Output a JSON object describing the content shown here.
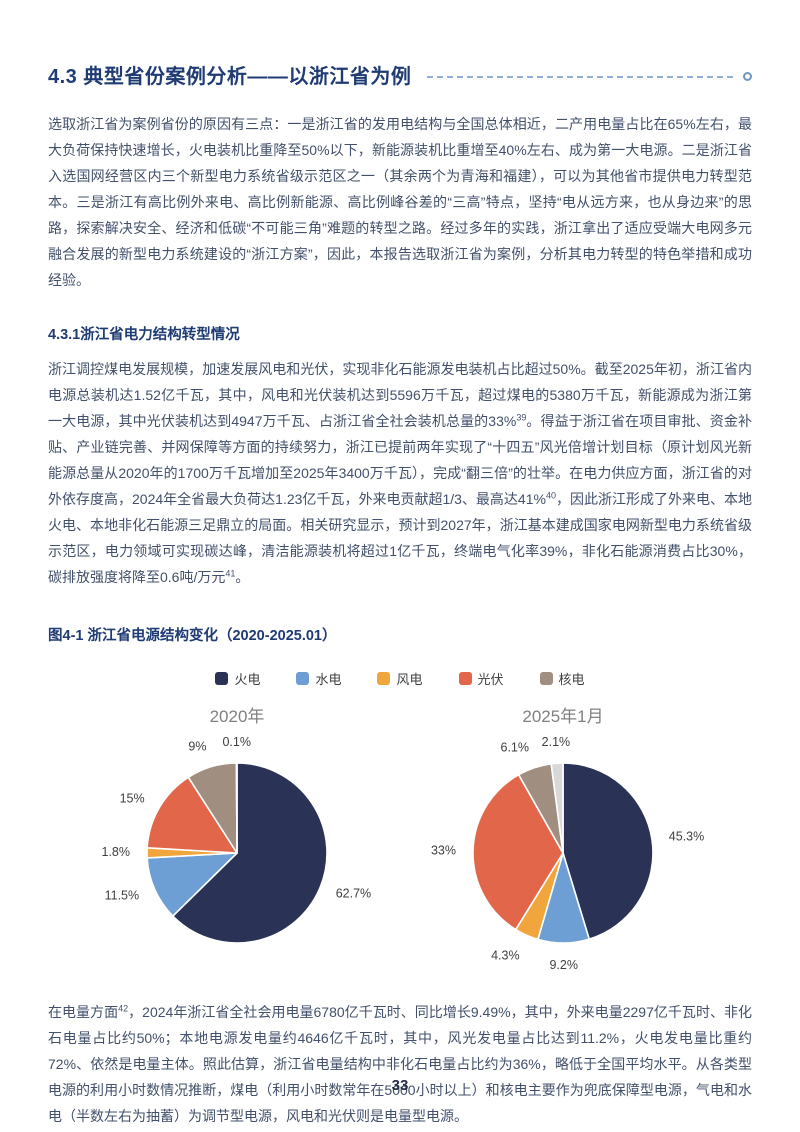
{
  "page": {
    "number": "33"
  },
  "section": {
    "title": "4.3 典型省份案例分析——以浙江省为例",
    "subsection_title": "4.3.1浙江省电力结构转型情况",
    "figure_caption": "图4-1 浙江省电源结构变化（2020-2025.01）"
  },
  "paragraphs": {
    "p1": [
      "选取浙江省为案例省份的原因有三点：一是浙江省的发用电结构与全国总体相近，二产用电量占比在65%左右，最大负荷保持快速增长，火电装机比重降至50%以下，新能源装机比重增至40%左右、成为第一大电源。二是浙江省入选国网经营区内三个新型电力系统省级示范区之一（其余两个为青海和福建），可以为其他省市提供电力转型范本。三是浙江有高比例外来电、高比例新能源、高比例峰谷差的“三高”特点，坚持“电从远方来，也从身边来”的思路，探索解决安全、经济和低碳“不可能三角”难题的转型之路。经过多年的实践，浙江拿出了适应受端大电网多元融合发展的新型电力系统建设的“浙江方案”，因此，本报告选取浙江省为案例，分析其电力转型的特色举措和成功经验。"
    ],
    "p2": [
      "浙江调控煤电发展规模，加速发展风电和光伏，实现非化石能源发电装机占比超过50%。截至2025年初，浙江省内电源总装机达1.52亿千瓦，其中，风电和光伏装机达到5596万千瓦，超过煤电的5380万千瓦，新能源成为浙江第一大电源，其中光伏装机达到4947万千瓦、占浙江省全社会装机总量的33%",
      {
        "sup": "39"
      },
      "。得益于浙江省在项目审批、资金补贴、产业链完善、并网保障等方面的持续努力，浙江已提前两年实现了“十四五”风光倍增计划目标（原计划风光新能源总量从2020年的1700万千瓦增加至2025年3400万千瓦），完成“翻三倍”的壮举。在电力供应方面，浙江省的对外依存度高，2024年全省最大负荷达1.23亿千瓦，外来电贡献超1/3、最高达41%",
      {
        "sup": "40"
      },
      "，因此浙江形成了外来电、本地火电、本地非化石能源三足鼎立的局面。相关研究显示，预计到2027年，浙江基本建成国家电网新型电力系统省级示范区，电力领域可实现碳达峰，清洁能源装机将超过1亿千瓦，终端电气化率39%，非化石能源消费占比30%，碳排放强度将降至0.6吨/万元",
      {
        "sup": "41"
      },
      "。"
    ],
    "p3": [
      "在电量方面",
      {
        "sup": "42"
      },
      "，2024年浙江省全社会用电量6780亿千瓦时、同比增长9.49%，其中，外来电量2297亿千瓦时、非化石电量占比约50%；本地电源发电量约4646亿千瓦时，其中，风光发电量占比达到11.2%，火电发电量比重约72%、依然是电量主体。照此估算，浙江省电量结构中非化石电量占比约为36%，略低于全国平均水平。从各类型电源的利用小时数情况推断，煤电（利用小时数常年在5000小时以上）和核电主要作为兜底保障型电源，气电和水电（半数左右为抽蓄）为调节型电源，风电和光伏则是电量型电源。"
    ]
  },
  "colors": {
    "heading": "#1f3b73",
    "body_text": "#42506b",
    "dashed_rule": "#8fafd4",
    "chart_title_gray": "#808080"
  },
  "chart_data": {
    "type": "pie",
    "title": "图4-1 浙江省电源结构变化（2020-2025.01）",
    "legend_position": "top-center",
    "legend": [
      {
        "label": "火电",
        "color": "#2a3356"
      },
      {
        "label": "水电",
        "color": "#6e9fd4"
      },
      {
        "label": "风电",
        "color": "#f0a63d"
      },
      {
        "label": "光伏",
        "color": "#e2674a"
      },
      {
        "label": "核电",
        "color": "#a08f81"
      }
    ],
    "direction": "clockwise",
    "start_angle_deg": 0,
    "pies": [
      {
        "title": "2020年",
        "slices": [
          {
            "name": "火电",
            "value": 62.7,
            "label": "62.7%",
            "color": "#2a3356"
          },
          {
            "name": "水电",
            "value": 11.5,
            "label": "11.5%",
            "color": "#6e9fd4"
          },
          {
            "name": "风电",
            "value": 1.8,
            "label": "1.8%",
            "color": "#f0a63d"
          },
          {
            "name": "光伏",
            "value": 15,
            "label": "15%",
            "color": "#e2674a"
          },
          {
            "name": "核电",
            "value": 9,
            "label": "9%",
            "color": "#a08f81"
          },
          {
            "name": "",
            "value": 0.1,
            "label": "0.1%",
            "color": "#d8d8d8"
          }
        ]
      },
      {
        "title": "2025年1月",
        "slices": [
          {
            "name": "火电",
            "value": 45.3,
            "label": "45.3%",
            "color": "#2a3356"
          },
          {
            "name": "水电",
            "value": 9.2,
            "label": "9.2%",
            "color": "#6e9fd4"
          },
          {
            "name": "风电",
            "value": 4.3,
            "label": "4.3%",
            "color": "#f0a63d"
          },
          {
            "name": "光伏",
            "value": 33,
            "label": "33%",
            "color": "#e2674a"
          },
          {
            "name": "核电",
            "value": 6.1,
            "label": "6.1%",
            "color": "#a08f81"
          },
          {
            "name": "",
            "value": 2.1,
            "label": "2.1%",
            "color": "#d8d8d8"
          }
        ]
      }
    ]
  }
}
